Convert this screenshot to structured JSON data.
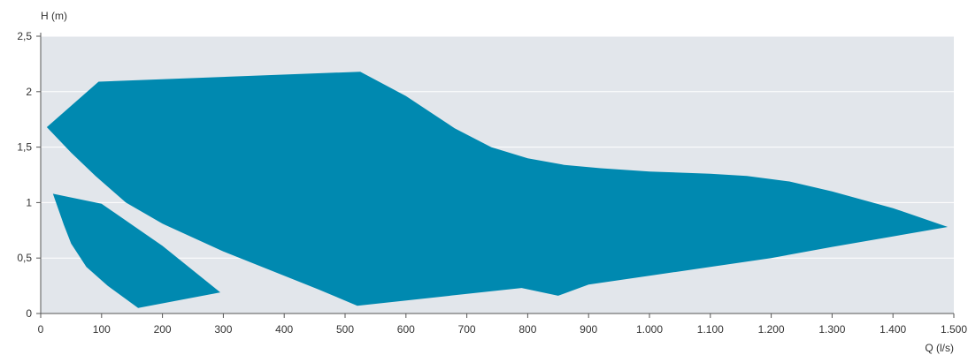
{
  "chart_data": {
    "type": "area",
    "title": "",
    "xlabel": "Q (l/s)",
    "ylabel": "H (m)",
    "xlim": [
      0,
      1500
    ],
    "ylim": [
      0,
      2.5
    ],
    "x_ticks": [
      0,
      100,
      200,
      300,
      400,
      500,
      600,
      700,
      800,
      900,
      1000,
      1100,
      1200,
      1300,
      1400,
      1500
    ],
    "x_tick_labels": [
      "0",
      "100",
      "200",
      "300",
      "400",
      "500",
      "600",
      "700",
      "800",
      "900",
      "1.000",
      "1.100",
      "1.200",
      "1.300",
      "1.400",
      "1.500"
    ],
    "y_ticks": [
      0,
      0.5,
      1,
      1.5,
      2,
      2.5
    ],
    "y_tick_labels": [
      "0",
      "0,5",
      "1",
      "1,5",
      "2",
      "2,5"
    ],
    "grid": "horizontal",
    "colors": {
      "fill": "#0089b0",
      "plot_background": "#e2e6eb",
      "grid": "#ffffff",
      "text": "#333333"
    },
    "series": [
      {
        "points": [
          [
            10,
            1.68
          ],
          [
            95,
            2.09
          ],
          [
            525,
            2.18
          ],
          [
            600,
            1.96
          ],
          [
            680,
            1.67
          ],
          [
            740,
            1.5
          ],
          [
            800,
            1.4
          ],
          [
            860,
            1.34
          ],
          [
            920,
            1.31
          ],
          [
            1000,
            1.28
          ],
          [
            1100,
            1.26
          ],
          [
            1160,
            1.24
          ],
          [
            1230,
            1.19
          ],
          [
            1300,
            1.1
          ],
          [
            1400,
            0.95
          ],
          [
            1490,
            0.78
          ],
          [
            1300,
            0.6
          ],
          [
            1200,
            0.5
          ],
          [
            1100,
            0.42
          ],
          [
            1000,
            0.34
          ],
          [
            900,
            0.26
          ],
          [
            850,
            0.16
          ],
          [
            790,
            0.23
          ],
          [
            520,
            0.07
          ],
          [
            455,
            0.22
          ],
          [
            400,
            0.34
          ],
          [
            300,
            0.56
          ],
          [
            200,
            0.81
          ],
          [
            140,
            1.0
          ],
          [
            90,
            1.24
          ],
          [
            50,
            1.45
          ],
          [
            10,
            1.68
          ]
        ]
      },
      {
        "points": [
          [
            20,
            1.08
          ],
          [
            100,
            0.99
          ],
          [
            200,
            0.61
          ],
          [
            295,
            0.19
          ],
          [
            160,
            0.05
          ],
          [
            110,
            0.25
          ],
          [
            75,
            0.42
          ],
          [
            50,
            0.63
          ],
          [
            38,
            0.8
          ],
          [
            20,
            1.08
          ]
        ]
      }
    ]
  }
}
